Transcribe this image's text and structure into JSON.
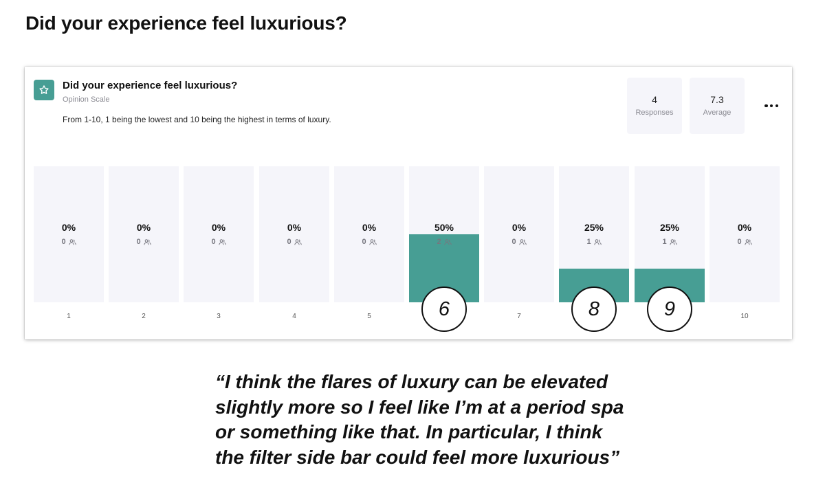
{
  "page": {
    "heading": "Did your experience feel luxurious?",
    "quote_lines": [
      "“I think the flares of luxury can be elevated",
      "slightly more so I feel like I’m at a period spa",
      "or something like that. In particular, I think",
      "the filter side bar could feel more luxurious”"
    ]
  },
  "card": {
    "icon": "star-icon",
    "title": "Did your experience feel luxurious?",
    "type": "Opinion Scale",
    "description": "From 1-10, 1 being the lowest and 10 being the highest in terms of luxury.",
    "stats": {
      "responses_value": "4",
      "responses_label": "Responses",
      "average_value": "7.3",
      "average_label": "Average"
    },
    "more_icon": "ellipsis-icon",
    "count_icon": "people-icon"
  },
  "chart_data": {
    "type": "bar",
    "categories": [
      "1",
      "2",
      "3",
      "4",
      "5",
      "6",
      "7",
      "8",
      "9",
      "10"
    ],
    "values": [
      0,
      0,
      0,
      0,
      0,
      50,
      0,
      25,
      25,
      0
    ],
    "pct_labels": [
      "0%",
      "0%",
      "0%",
      "0%",
      "0%",
      "50%",
      "0%",
      "25%",
      "25%",
      "0%"
    ],
    "counts": [
      "0",
      "0",
      "0",
      "0",
      "0",
      "2",
      "0",
      "1",
      "1",
      "0"
    ],
    "ylim": [
      0,
      100
    ],
    "bar_color": "#479e94",
    "track_color": "#f5f5fa",
    "circled_labels": [
      {
        "category": "6",
        "text": "6"
      },
      {
        "category": "8",
        "text": "8"
      },
      {
        "category": "9",
        "text": "9"
      }
    ]
  }
}
